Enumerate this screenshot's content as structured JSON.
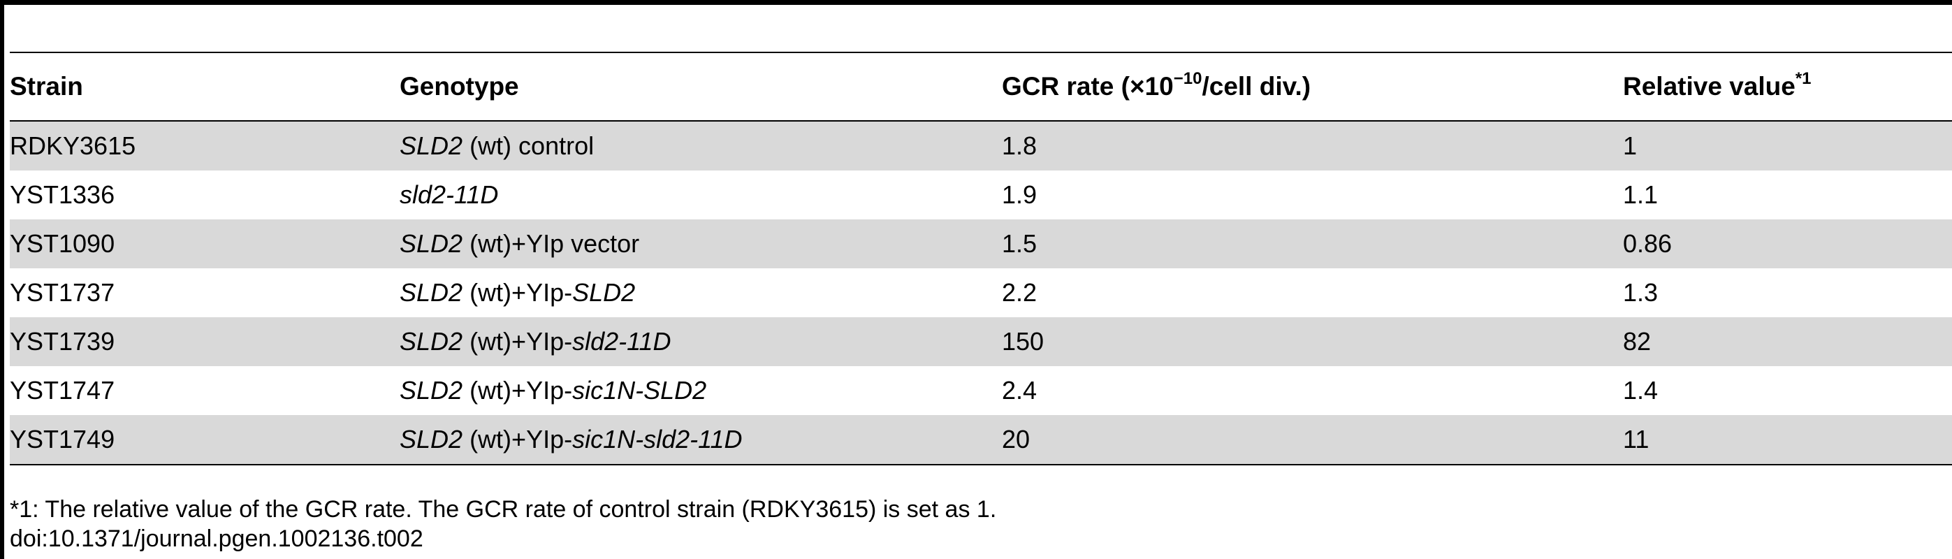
{
  "table": {
    "headers": {
      "strain": "Strain",
      "genotype": "Genotype",
      "gcr_rate_prefix": "GCR rate (×10",
      "gcr_rate_exp": "−10",
      "gcr_rate_suffix": "/cell div.)",
      "relative": "Relative value",
      "relative_note": "*1"
    },
    "rows": [
      {
        "strain": "RDKY3615",
        "g_italic1": "SLD2",
        "g_plain1": " (wt) control",
        "g_italic2": "",
        "gcr": "1.8",
        "rel": "1",
        "shade": true
      },
      {
        "strain": "YST1336",
        "g_italic1": "sld2-11D",
        "g_plain1": "",
        "g_italic2": "",
        "gcr": "1.9",
        "rel": "1.1",
        "shade": false
      },
      {
        "strain": "YST1090",
        "g_italic1": "SLD2",
        "g_plain1": " (wt)+YIp vector",
        "g_italic2": "",
        "gcr": "1.5",
        "rel": "0.86",
        "shade": true
      },
      {
        "strain": "YST1737",
        "g_italic1": "SLD2",
        "g_plain1": " (wt)+YIp-",
        "g_italic2": "SLD2",
        "gcr": "2.2",
        "rel": "1.3",
        "shade": false
      },
      {
        "strain": "YST1739",
        "g_italic1": "SLD2",
        "g_plain1": " (wt)+YIp-",
        "g_italic2": "sld2-11D",
        "gcr": "150",
        "rel": "82",
        "shade": true
      },
      {
        "strain": "YST1747",
        "g_italic1": "SLD2",
        "g_plain1": " (wt)+YIp-",
        "g_italic2": "sic1N-SLD2",
        "gcr": "2.4",
        "rel": "1.4",
        "shade": false
      },
      {
        "strain": "YST1749",
        "g_italic1": "SLD2",
        "g_plain1": " (wt)+YIp-",
        "g_italic2": "sic1N-sld2-11D",
        "gcr": "20",
        "rel": "11",
        "shade": true
      }
    ]
  },
  "footnote": {
    "line1": "*1: The relative value of the GCR rate. The GCR rate of control strain (RDKY3615) is set as 1.",
    "line2": "doi:10.1371/journal.pgen.1002136.t002"
  }
}
